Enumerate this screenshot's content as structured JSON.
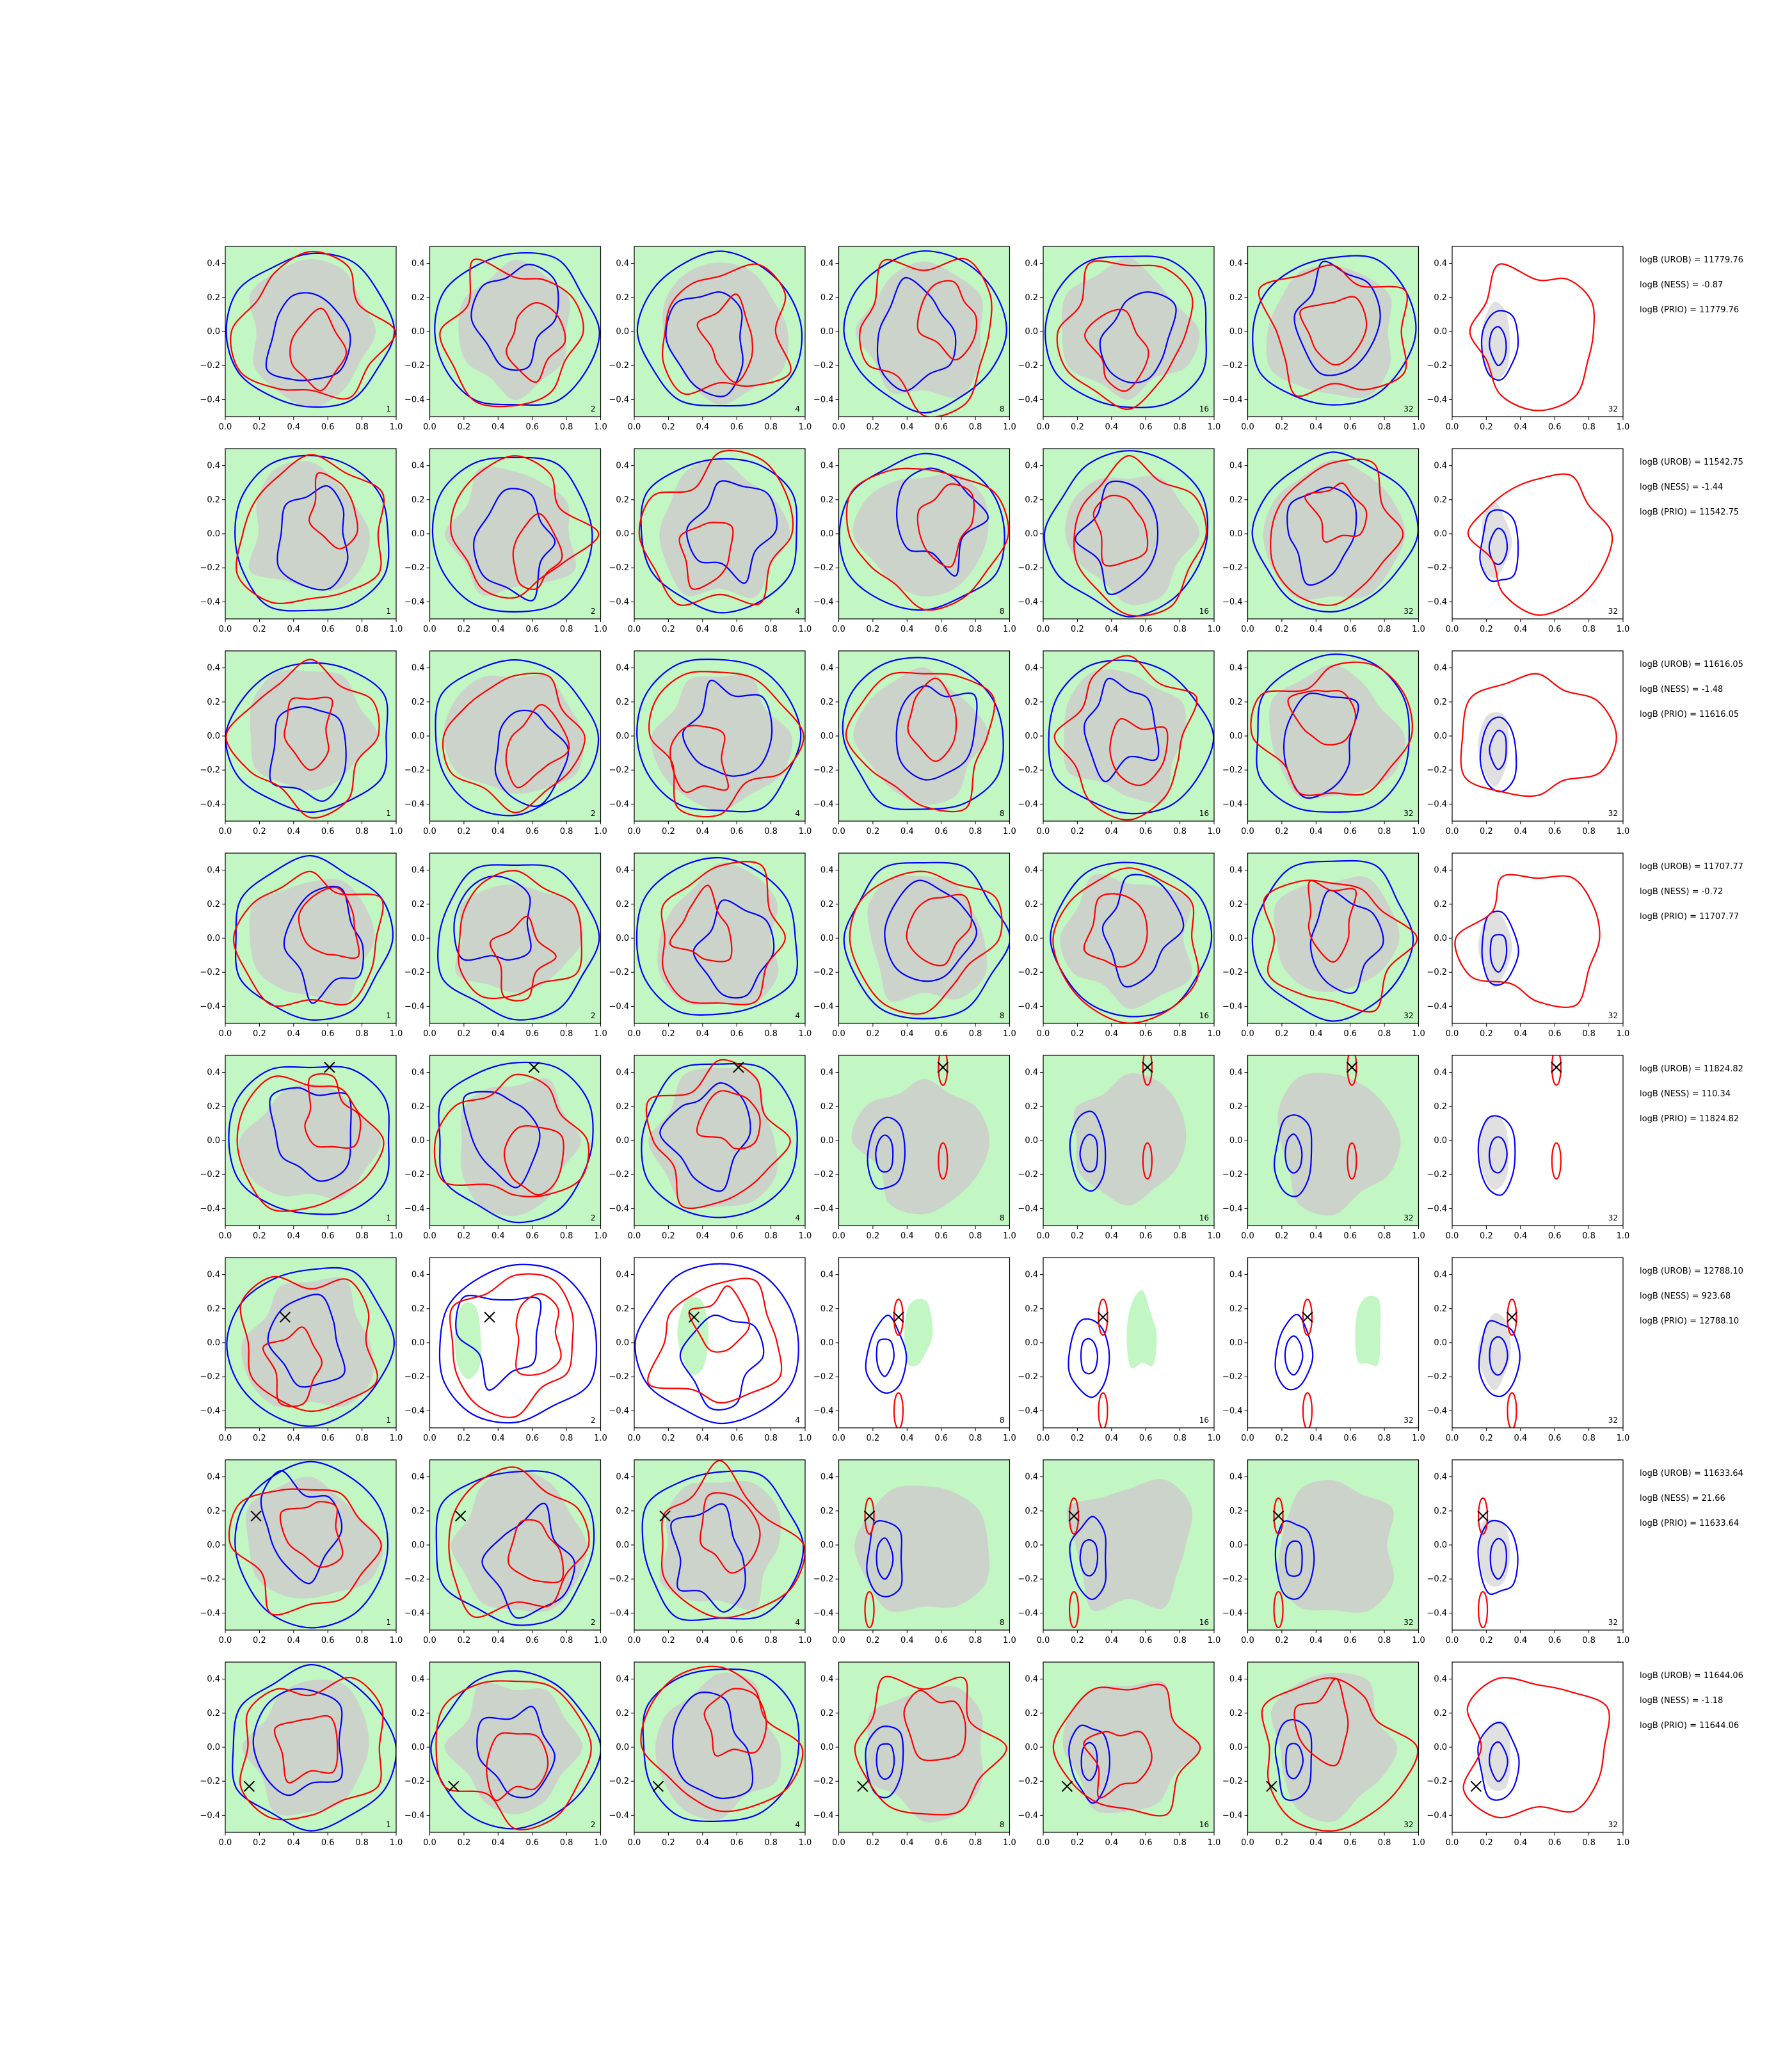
{
  "chart_data": {
    "type": "contour",
    "grid": {
      "rows": 8,
      "cols": 7
    },
    "xlim": [
      0.0,
      1.0
    ],
    "ylim": [
      -0.5,
      0.5
    ],
    "xticks": [
      "0.0",
      "0.2",
      "0.4",
      "0.6",
      "0.8",
      "1.0"
    ],
    "yticks": [
      "0.4",
      "0.2",
      "0.0",
      "−0.2",
      "−0.4"
    ],
    "panel_numbers": [
      "1",
      "2",
      "4",
      "8",
      "16",
      "32",
      "32"
    ],
    "grid_lines": false,
    "colors": {
      "blue": "#0000ff",
      "red": "#ff0000",
      "green_fill": "#90ee90",
      "grey_fill": "#cccccc",
      "marker": "#000000"
    },
    "rows": [
      {
        "row": 1,
        "marker": null,
        "stats": [
          "logB (UROB) = 11779.76",
          "logB (NESS) = -0.87",
          "logB (PRIO) = 11779.76"
        ]
      },
      {
        "row": 2,
        "marker": null,
        "stats": [
          "logB (UROB) = 11542.75",
          "logB (NESS) = -1.44",
          "logB (PRIO) = 11542.75"
        ]
      },
      {
        "row": 3,
        "marker": null,
        "stats": [
          "logB (UROB) = 11616.05",
          "logB (NESS) = -1.48",
          "logB (PRIO) = 11616.05"
        ]
      },
      {
        "row": 4,
        "marker": null,
        "stats": [
          "logB (UROB) = 11707.77",
          "logB (NESS) = -0.72",
          "logB (PRIO) = 11707.77"
        ]
      },
      {
        "row": 5,
        "marker": [
          0.61,
          0.43
        ],
        "stats": [
          "logB (UROB) = 11824.82",
          "logB (NESS) = 110.34",
          "logB (PRIO) = 11824.82"
        ]
      },
      {
        "row": 6,
        "marker": [
          0.35,
          0.15
        ],
        "stats": [
          "logB (UROB) = 12788.10",
          "logB (NESS) = 923.68",
          "logB (PRIO) = 12788.10"
        ]
      },
      {
        "row": 7,
        "marker": [
          0.18,
          0.17
        ],
        "stats": [
          "logB (UROB) = 11633.64",
          "logB (NESS) = 21.66",
          "logB (PRIO) = 11633.64"
        ]
      },
      {
        "row": 8,
        "marker": [
          0.14,
          -0.23
        ],
        "stats": [
          "logB (UROB) = 11644.06",
          "logB (NESS) = -1.18",
          "logB (PRIO) = 11644.06"
        ]
      }
    ]
  }
}
